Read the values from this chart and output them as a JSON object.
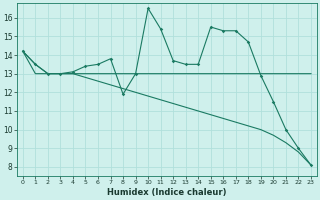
{
  "xlabel": "Humidex (Indice chaleur)",
  "bg_color": "#cff0ec",
  "line_color": "#1a7a62",
  "grid_color": "#b0e0dc",
  "xlim": [
    -0.5,
    23.5
  ],
  "ylim": [
    7.5,
    16.8
  ],
  "yticks": [
    8,
    9,
    10,
    11,
    12,
    13,
    14,
    15,
    16
  ],
  "xticks": [
    0,
    1,
    2,
    3,
    4,
    5,
    6,
    7,
    8,
    9,
    10,
    11,
    12,
    13,
    14,
    15,
    16,
    17,
    18,
    19,
    20,
    21,
    22,
    23
  ],
  "series_peaks": [
    14.2,
    13.5,
    13.0,
    13.0,
    13.1,
    13.4,
    13.5,
    13.8,
    11.9,
    13.0,
    16.5,
    15.4,
    13.7,
    13.5,
    13.5,
    15.5,
    15.3,
    15.3,
    14.7,
    12.9,
    11.5,
    10.0,
    9.0,
    8.1
  ],
  "series_flat": [
    14.2,
    13.0,
    13.0,
    13.0,
    13.0,
    13.0,
    13.0,
    13.0,
    13.0,
    13.0,
    13.0,
    13.0,
    13.0,
    13.0,
    13.0,
    13.0,
    13.0,
    13.0,
    13.0,
    13.0,
    13.0,
    13.0,
    13.0,
    13.0
  ],
  "series_decline": [
    14.2,
    13.5,
    13.0,
    13.0,
    13.0,
    12.8,
    12.6,
    12.4,
    12.2,
    12.0,
    11.8,
    11.6,
    11.4,
    11.2,
    11.0,
    10.8,
    10.6,
    10.4,
    10.2,
    10.0,
    9.7,
    9.3,
    8.8,
    8.1
  ]
}
